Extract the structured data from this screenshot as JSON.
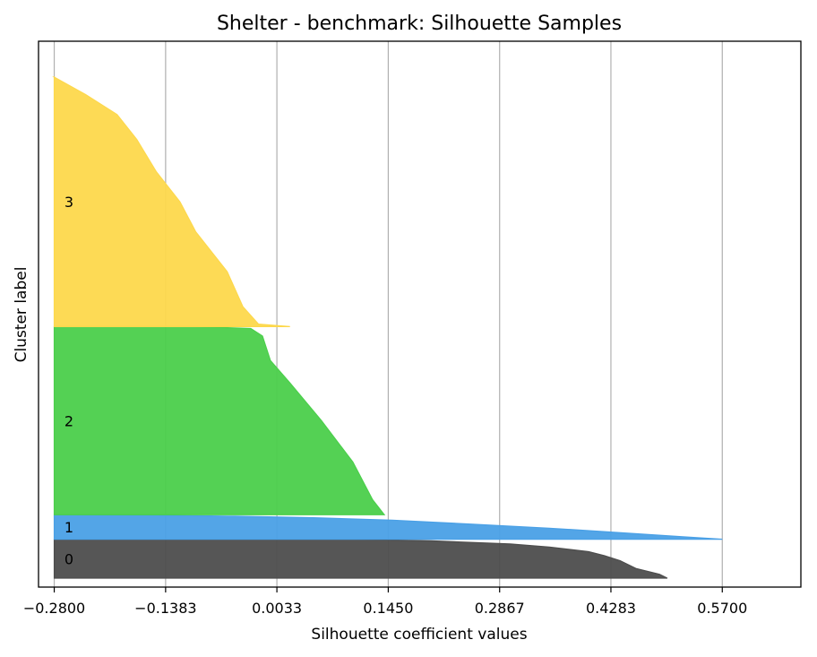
{
  "chart_data": {
    "type": "area",
    "title": "Shelter - benchmark: Silhouette Samples",
    "xlabel": "Silhouette coefficient values",
    "ylabel": "Cluster label",
    "xlim": [
      -0.3,
      0.67
    ],
    "xticks": [
      "−0.2800",
      "−0.1383",
      "0.0033",
      "0.1450",
      "0.2867",
      "0.4283",
      "0.5700"
    ],
    "xtick_values": [
      -0.28,
      -0.1383,
      0.0033,
      0.145,
      0.2867,
      0.4283,
      0.57
    ],
    "grid": "vertical",
    "clusters": [
      {
        "label": "0",
        "color": "#4d4d4d",
        "size": 19,
        "max": 0.5,
        "profile": [
          [
            0.5,
            0
          ],
          [
            0.49,
            0.1
          ],
          [
            0.46,
            0.25
          ],
          [
            0.44,
            0.45
          ],
          [
            0.42,
            0.58
          ],
          [
            0.4,
            0.68
          ],
          [
            0.35,
            0.8
          ],
          [
            0.3,
            0.88
          ],
          [
            0.2,
            0.96
          ],
          [
            0.1,
            1
          ]
        ]
      },
      {
        "label": "1",
        "color": "#4aa0e6",
        "size": 12,
        "max": 0.57,
        "profile": [
          [
            0.57,
            0
          ],
          [
            0.52,
            0.1
          ],
          [
            0.45,
            0.25
          ],
          [
            0.35,
            0.45
          ],
          [
            0.25,
            0.62
          ],
          [
            0.15,
            0.78
          ],
          [
            0.05,
            0.88
          ],
          [
            -0.05,
            0.94
          ],
          [
            -0.15,
            0.98
          ],
          [
            -0.28,
            1
          ]
        ]
      },
      {
        "label": "2",
        "color": "#4bcf4b",
        "size": 92,
        "max": 0.14,
        "profile": [
          [
            0.14,
            0
          ],
          [
            0.125,
            0.08
          ],
          [
            0.1,
            0.28
          ],
          [
            0.06,
            0.5
          ],
          [
            0.02,
            0.7
          ],
          [
            -0.005,
            0.82
          ],
          [
            -0.015,
            0.95
          ],
          [
            -0.03,
            0.99
          ],
          [
            -0.1,
            1
          ]
        ]
      },
      {
        "label": "3",
        "color": "#fdd84c",
        "size": 122,
        "max": 0.02,
        "profile": [
          [
            0.02,
            0
          ],
          [
            -0.02,
            0.01
          ],
          [
            -0.04,
            0.08
          ],
          [
            -0.06,
            0.22
          ],
          [
            -0.1,
            0.38
          ],
          [
            -0.12,
            0.5
          ],
          [
            -0.15,
            0.62
          ],
          [
            -0.175,
            0.75
          ],
          [
            -0.2,
            0.85
          ],
          [
            -0.24,
            0.93
          ],
          [
            -0.28,
            1
          ]
        ]
      }
    ]
  }
}
